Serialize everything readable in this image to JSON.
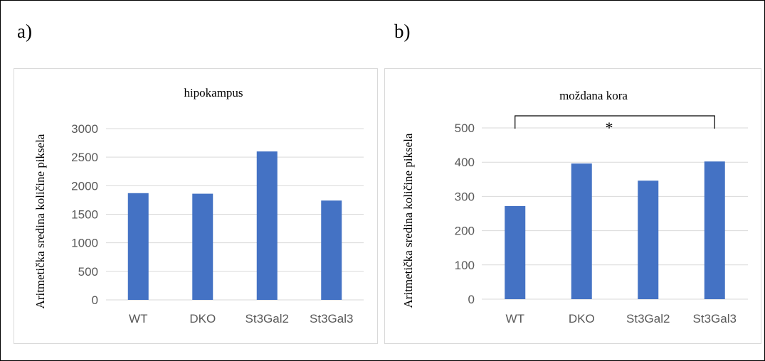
{
  "panels": [
    {
      "letter": "a)"
    },
    {
      "letter": "b)"
    }
  ],
  "colors": {
    "bar": "#4472c4",
    "grid": "#d9d9d9",
    "tick_text": "#595959",
    "title_text": "#000000",
    "panel_border": "#d9d9d9"
  },
  "chart_data": [
    {
      "type": "bar",
      "title": "hipokampus",
      "xlabel": "",
      "ylabel": "Aritmetička sredina količine piksela",
      "categories": [
        "WT",
        "DKO",
        "St3Gal2",
        "St3Gal3"
      ],
      "values": [
        1870,
        1860,
        2600,
        1740
      ],
      "ylim": [
        0,
        3000
      ],
      "yticks": [
        0,
        500,
        1000,
        1500,
        2000,
        2500,
        3000
      ],
      "grid": true,
      "legend": "none"
    },
    {
      "type": "bar",
      "title": "moždana kora",
      "xlabel": "",
      "ylabel": "Aritmetička sredina količine piksela",
      "categories": [
        "WT",
        "DKO",
        "St3Gal2",
        "St3Gal3"
      ],
      "values": [
        272,
        396,
        346,
        402
      ],
      "ylim": [
        0,
        500
      ],
      "yticks": [
        0,
        100,
        200,
        300,
        400,
        500
      ],
      "grid": true,
      "legend": "none",
      "annotations": [
        {
          "text": "*",
          "type": "significance-bracket",
          "from": "WT",
          "to": "St3Gal3"
        }
      ]
    }
  ]
}
